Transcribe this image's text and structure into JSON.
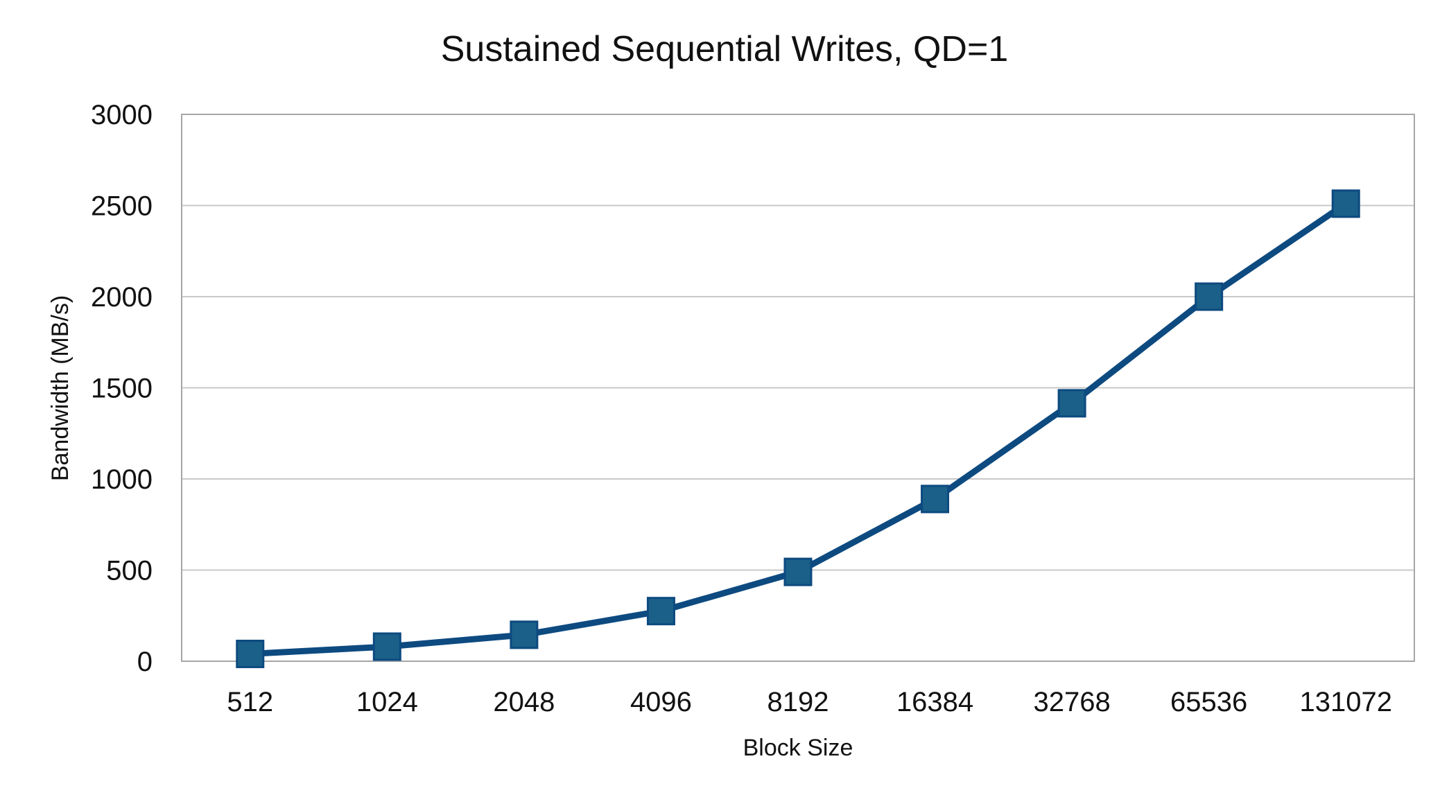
{
  "chart_data": {
    "type": "line",
    "title": "Sustained Sequential Writes, QD=1",
    "xlabel": "Block Size",
    "ylabel": "Bandwidth (MB/s)",
    "categories": [
      "512",
      "1024",
      "2048",
      "4096",
      "8192",
      "16384",
      "32768",
      "65536",
      "131072"
    ],
    "series": [
      {
        "values": [
          40,
          80,
          145,
          275,
          490,
          890,
          1415,
          2000,
          2510
        ]
      }
    ],
    "ylim": [
      0,
      3000
    ],
    "yticks": [
      0,
      500,
      1000,
      1500,
      2000,
      2500,
      3000
    ],
    "grid": true,
    "legend": "none",
    "colors": {
      "line": "#0d4a80",
      "marker": "#1a6088",
      "grid": "#c8c8c8",
      "axis": "#a6a6a6"
    },
    "marker": "square-marker"
  }
}
